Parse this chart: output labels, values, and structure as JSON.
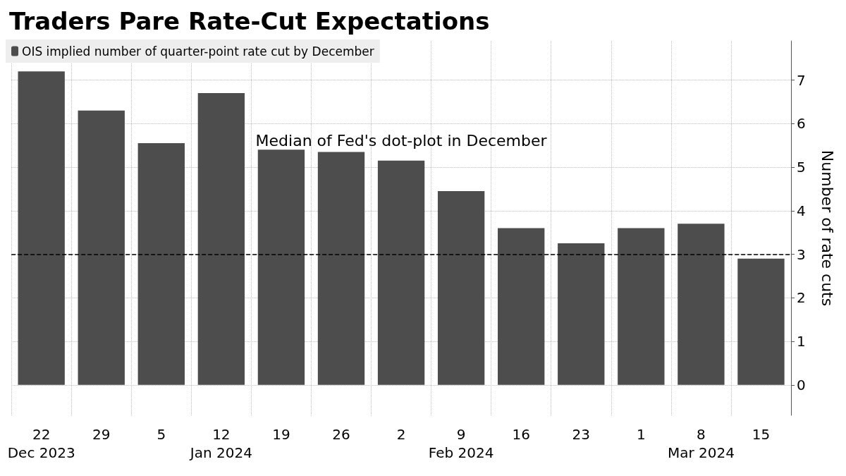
{
  "chart_data": {
    "type": "bar",
    "title": "Traders Pare Rate-Cut Expectations",
    "ylabel": "Number of rate cuts",
    "categories": [
      "22\nDec 2023",
      "29",
      "5",
      "12\nJan 2024",
      "19",
      "26",
      "2",
      "9\nFeb 2024",
      "16",
      "23",
      "1",
      "8\nMar 2024",
      "15"
    ],
    "series": [
      {
        "name": "OIS implied number of quarter-point rate cut by December",
        "color": "#4d4d4d",
        "values": [
          7.2,
          6.3,
          5.55,
          6.7,
          5.4,
          5.35,
          5.15,
          4.45,
          3.6,
          3.25,
          3.6,
          3.7,
          2.9
        ]
      }
    ],
    "ylim": [
      -0.7,
      7.9
    ],
    "yticks": [
      0,
      1,
      2,
      3,
      4,
      5,
      6,
      7
    ],
    "ref_lines": [
      {
        "axis": "y",
        "value": 3,
        "label": "Median of Fed's dot-plot in December",
        "color": "#000000",
        "line_style": "dashed"
      }
    ],
    "grid": true,
    "legend": "top left"
  }
}
